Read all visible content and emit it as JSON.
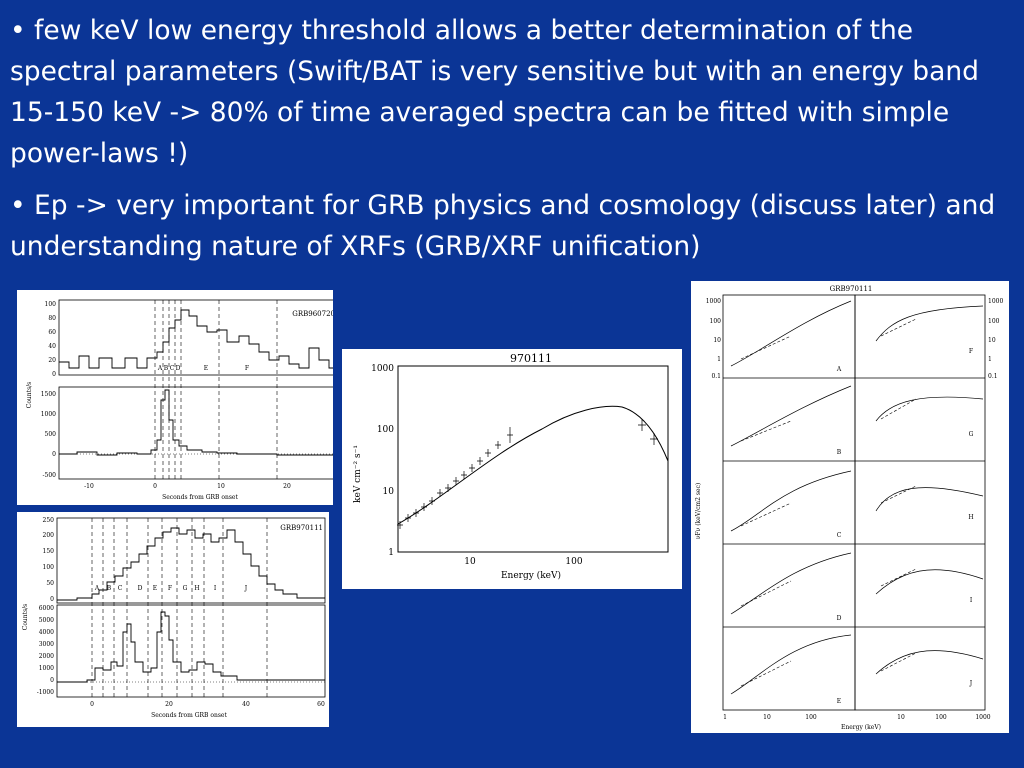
{
  "bullets": [
    "• few keV low energy threshold allows a better determination of the spectral parameters (Swift/BAT is very sensitive but with an energy band 15-150 keV -> 80% of time averaged spectra can be fitted with simple power-laws !)",
    "• Ep -> very important for GRB physics and cosmology (discuss later) and understanding nature of XRFs (GRB/XRF unification)"
  ],
  "fig_lc1": {
    "name": "GRB960720",
    "ylabel": "Counts/s",
    "xlabel": "Seconds from GRB onset",
    "segments": [
      "A",
      "B",
      "C",
      "D",
      "E",
      "F"
    ],
    "top_ticks": [
      "100",
      "80",
      "60",
      "40",
      "20",
      "0"
    ],
    "bottom_ticks": [
      "1500",
      "1000",
      "500",
      "0",
      "-500"
    ],
    "x_ticks": [
      "-10",
      "0",
      "10",
      "20"
    ]
  },
  "fig_lc2": {
    "name": "GRB970111",
    "ylabel": "Counts/s",
    "xlabel": "Seconds from GRB onset",
    "segments": [
      "A",
      "B",
      "C",
      "D",
      "E",
      "F",
      "G",
      "H",
      "I",
      "J"
    ],
    "top_ticks": [
      "250",
      "200",
      "150",
      "100",
      "50",
      "0"
    ],
    "bottom_ticks": [
      "6000",
      "5000",
      "4000",
      "3000",
      "2000",
      "1000",
      "0",
      "-1000"
    ],
    "x_ticks": [
      "0",
      "20",
      "40",
      "60"
    ]
  },
  "fig_spec": {
    "title": "970111",
    "ylabel": "keV cm⁻² s⁻¹",
    "xlabel": "Energy (keV)",
    "y_ticks": [
      "1000",
      "100",
      "10",
      "1"
    ],
    "x_ticks": [
      "10",
      "100"
    ]
  },
  "fig_grid": {
    "title": "GRB970111",
    "ylabel": "νFν (keV/cm2 sec)",
    "xlabel": "Energy (keV)",
    "panels_left": [
      "A",
      "B",
      "C",
      "D",
      "E"
    ],
    "panels_right": [
      "F",
      "G",
      "H",
      "I",
      "J"
    ],
    "y_ticks": [
      "1000",
      "100",
      "10",
      "1",
      "0.1"
    ],
    "x_ticks_left": [
      "1",
      "10",
      "100"
    ],
    "x_ticks_right": [
      "10",
      "100",
      "1000"
    ]
  }
}
